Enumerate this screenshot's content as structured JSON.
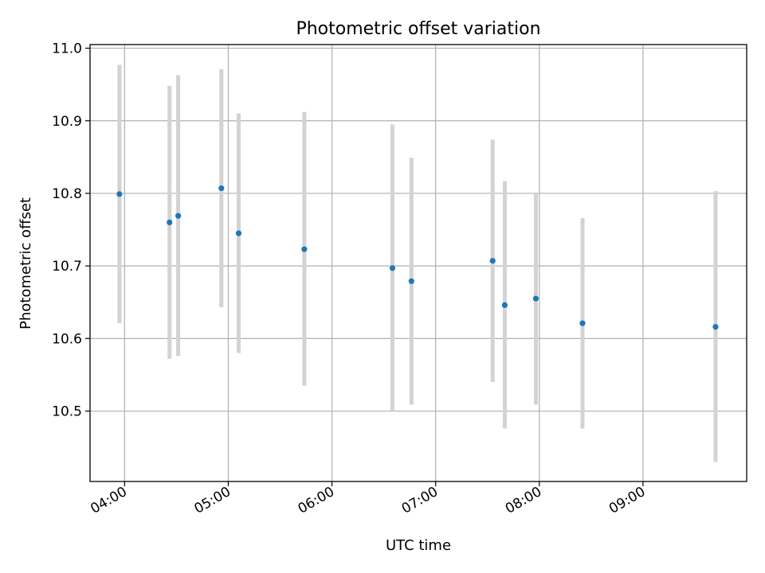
{
  "chart_data": {
    "type": "scatter",
    "title": "Photometric offset variation",
    "xlabel": "UTC time",
    "ylabel": "Photometric offset",
    "x_axis_kind": "time",
    "xlim": [
      "03:40",
      "10:00"
    ],
    "ylim": [
      10.403,
      11.005
    ],
    "grid": true,
    "x_ticks": [
      "04:00",
      "05:00",
      "06:00",
      "07:00",
      "08:00",
      "09:00"
    ],
    "y_ticks": [
      "10.5",
      "10.6",
      "10.7",
      "10.8",
      "10.9",
      "11.0"
    ],
    "series": [
      {
        "color": "#1f77b4",
        "errorbar_color": "#d3d3d3",
        "points": [
          {
            "x": "03:57",
            "y": 10.799,
            "yerr_low": 10.621,
            "yerr_high": 10.977
          },
          {
            "x": "04:26",
            "y": 10.76,
            "yerr_low": 10.572,
            "yerr_high": 10.948
          },
          {
            "x": "04:31",
            "y": 10.769,
            "yerr_low": 10.576,
            "yerr_high": 10.963
          },
          {
            "x": "04:56",
            "y": 10.807,
            "yerr_low": 10.643,
            "yerr_high": 10.971
          },
          {
            "x": "05:06",
            "y": 10.745,
            "yerr_low": 10.58,
            "yerr_high": 10.91
          },
          {
            "x": "05:44",
            "y": 10.723,
            "yerr_low": 10.535,
            "yerr_high": 10.912
          },
          {
            "x": "06:35",
            "y": 10.697,
            "yerr_low": 10.5,
            "yerr_high": 10.895
          },
          {
            "x": "06:46",
            "y": 10.679,
            "yerr_low": 10.509,
            "yerr_high": 10.849
          },
          {
            "x": "07:33",
            "y": 10.707,
            "yerr_low": 10.54,
            "yerr_high": 10.874
          },
          {
            "x": "07:40",
            "y": 10.646,
            "yerr_low": 10.476,
            "yerr_high": 10.817
          },
          {
            "x": "07:58",
            "y": 10.655,
            "yerr_low": 10.509,
            "yerr_high": 10.8
          },
          {
            "x": "08:25",
            "y": 10.621,
            "yerr_low": 10.476,
            "yerr_high": 10.766
          },
          {
            "x": "09:42",
            "y": 10.616,
            "yerr_low": 10.43,
            "yerr_high": 10.803
          }
        ]
      }
    ]
  }
}
